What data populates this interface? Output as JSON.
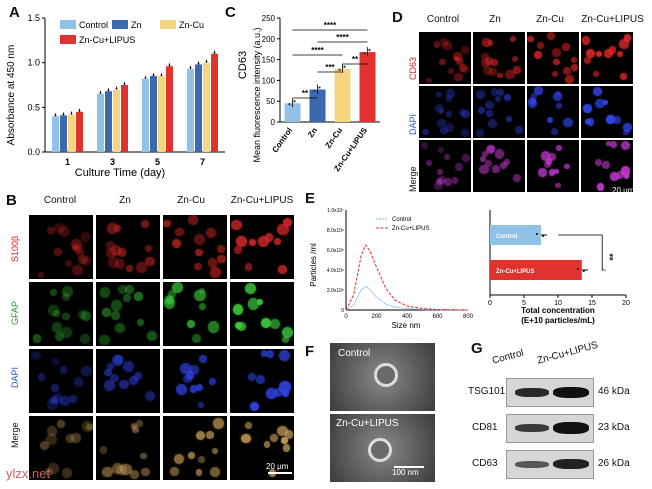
{
  "panels": {
    "A": "A",
    "B": "B",
    "C": "C",
    "D": "D",
    "E": "E",
    "F": "F",
    "G": "G"
  },
  "colors": {
    "control": "#8fc2e6",
    "zn": "#3b69b0",
    "zncu": "#f7d580",
    "znculipus": "#e0322e"
  },
  "panel_a": {
    "legend": [
      "Control",
      "Zn",
      "Zn-Cu",
      "Zn-Cu+LIPUS"
    ],
    "chart_data": {
      "type": "bar",
      "categories": [
        "1",
        "3",
        "5",
        "7"
      ],
      "series": [
        {
          "name": "Control",
          "values": [
            0.4,
            0.65,
            0.82,
            0.93
          ]
        },
        {
          "name": "Zn",
          "values": [
            0.41,
            0.68,
            0.85,
            0.98
          ]
        },
        {
          "name": "Zn-Cu",
          "values": [
            0.42,
            0.7,
            0.85,
            1.0
          ]
        },
        {
          "name": "Zn-Cu+LIPUS",
          "values": [
            0.45,
            0.75,
            0.96,
            1.1
          ]
        }
      ],
      "xlabel": "Culture Time (day)",
      "ylabel": "Absorbance at 450 nm",
      "ylim": [
        0,
        1.5
      ],
      "yticks": [
        "0.0",
        "0.5",
        "1.0",
        "1.5"
      ]
    }
  },
  "panel_c": {
    "title": "CD63",
    "sig": [
      "****",
      "****",
      "****",
      "***",
      "**",
      "**"
    ],
    "chart_data": {
      "type": "bar",
      "categories": [
        "Control",
        "Zn",
        "Zn-Cu",
        "Zn-Cu+LIPUS"
      ],
      "values": [
        45,
        78,
        128,
        168
      ],
      "ylabel": "Mean fluorescence intensity (a.u.)",
      "ylim": [
        0,
        250
      ],
      "yticks": [
        "0",
        "50",
        "100",
        "150",
        "200",
        "250"
      ]
    }
  },
  "panel_d": {
    "cols": [
      "Control",
      "Zn",
      "Zn-Cu",
      "Zn-Cu+LIPUS"
    ],
    "rows": [
      "CD63",
      "DAPI",
      "Merge"
    ],
    "scale": "20 μm"
  },
  "panel_b": {
    "cols": [
      "Control",
      "Zn",
      "Zn-Cu",
      "Zn-Cu+LIPUS"
    ],
    "rows": [
      "S100β",
      "GFAP",
      "DAPI",
      "Merge"
    ],
    "scale": "20 μm",
    "watermark": "ylzx.net"
  },
  "panel_e": {
    "line": {
      "chart_data": {
        "type": "line",
        "series": [
          {
            "name": "Control",
            "x": [
              0,
              50,
              100,
              130,
              160,
              200,
              260,
              320,
              400,
              500,
              600,
              800
            ],
            "y": [
              0,
              0.5,
              2.0,
              2.4,
              2.0,
              1.3,
              0.6,
              0.3,
              0.15,
              0.05,
              0.02,
              0
            ]
          },
          {
            "name": "Zn-Cu+LIPUS",
            "x": [
              0,
              50,
              100,
              130,
              160,
              200,
              260,
              320,
              400,
              500,
              600,
              800
            ],
            "y": [
              0,
              1.5,
              5.5,
              6.5,
              5.8,
              4.3,
              2.2,
              1.0,
              0.4,
              0.15,
              0.05,
              0
            ]
          }
        ],
        "xlabel": "Size nm",
        "ylabel": "Particles /ml",
        "xlim": [
          0,
          800
        ],
        "ylim": [
          0,
          10
        ],
        "xticks": [
          "0",
          "200",
          "400",
          "600",
          "800"
        ],
        "yticks": [
          "0",
          "2.0x10⁶",
          "4.0x10⁶",
          "6.0x10⁶",
          "8.0x10⁶",
          "1.0x10⁷"
        ]
      }
    },
    "hbar": {
      "chart_data": {
        "type": "bar",
        "categories": [
          "Control",
          "Zn-Cu+LIPUS"
        ],
        "values": [
          7.5,
          13.5
        ],
        "xlabel": "Total concentration\n(E+10 particles/mL)",
        "xlim": [
          0,
          20
        ],
        "xticks": [
          "0",
          "5",
          "10",
          "15",
          "20"
        ],
        "sig": "**"
      }
    }
  },
  "panel_f": {
    "labels": [
      "Control",
      "Zn-Cu+LIPUS"
    ],
    "scale": "100 nm"
  },
  "panel_g": {
    "cols": [
      "Control",
      "Zn-Cu+LIPUS"
    ],
    "proteins": [
      {
        "name": "TSG101",
        "kda": "46 kDa"
      },
      {
        "name": "CD81",
        "kda": "23 kDa"
      },
      {
        "name": "CD63",
        "kda": "26 kDa"
      }
    ]
  }
}
